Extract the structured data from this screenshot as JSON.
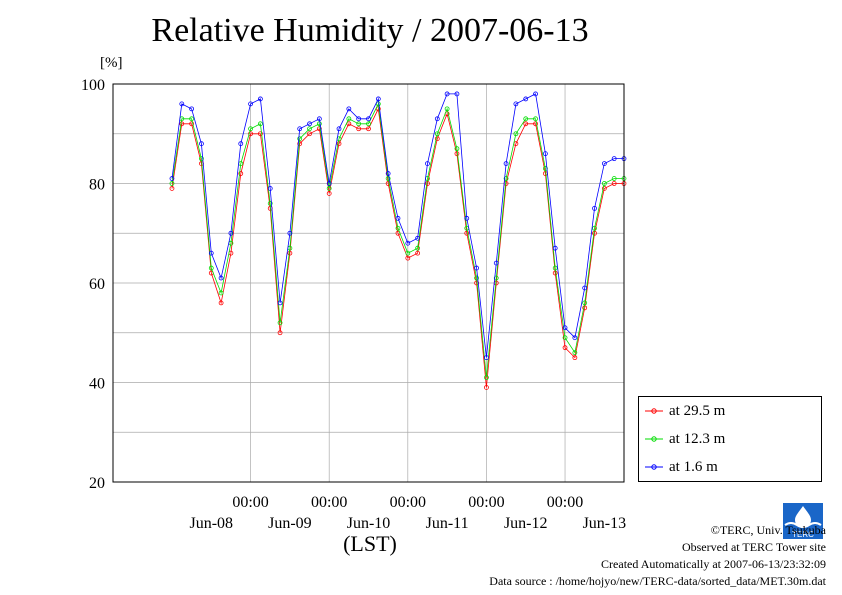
{
  "title": "Relative Humidity / 2007-06-13",
  "unit_label": "[%]",
  "x_axis_label": "(LST)",
  "legend": [
    {
      "label": "at 29.5 m",
      "color": "#ff0000"
    },
    {
      "label": "at 12.3 m",
      "color": "#00dd00"
    },
    {
      "label": "at 1.6 m",
      "color": "#0000ff"
    }
  ],
  "footer": {
    "copyright": "©TERC, Univ. Tsukuba",
    "observed": "Observed at TERC Tower site",
    "created": "Created Automatically at 2007-06-13/23:32:09",
    "source": "Data source : /home/hojyo/new/TERC-data/sorted_data/MET.30m.dat"
  },
  "logo_text": "TERC",
  "chart_data": {
    "type": "line",
    "title": "Relative Humidity / 2007-06-13",
    "ylabel": "[%]",
    "xlabel": "(LST)",
    "ylim": [
      20,
      100
    ],
    "xlim_hours": [
      -18,
      138
    ],
    "y_ticks": [
      20,
      40,
      60,
      80,
      100
    ],
    "x_tick_labels": [
      "00:00",
      "00:00",
      "00:00",
      "00:00",
      "00:00"
    ],
    "x_tick_hours": [
      24,
      48,
      72,
      96,
      120
    ],
    "date_labels": [
      "Jun-08",
      "Jun-09",
      "Jun-10",
      "Jun-11",
      "Jun-12",
      "Jun-13"
    ],
    "date_label_hours": [
      12,
      36,
      60,
      84,
      108,
      132
    ],
    "grid": true,
    "legend_position": "bottom-right",
    "x": [
      0,
      3,
      6,
      9,
      12,
      15,
      18,
      21,
      24,
      27,
      30,
      33,
      36,
      39,
      42,
      45,
      48,
      51,
      54,
      57,
      60,
      63,
      66,
      69,
      72,
      75,
      78,
      81,
      84,
      87,
      90,
      93,
      96,
      99,
      102,
      105,
      108,
      111,
      114,
      117,
      120,
      123,
      126,
      129,
      132,
      135,
      138
    ],
    "series": [
      {
        "name": "at 29.5 m",
        "color": "#ff0000",
        "values": [
          79,
          92,
          92,
          84,
          62,
          56,
          66,
          82,
          90,
          90,
          75,
          50,
          66,
          88,
          90,
          91,
          78,
          88,
          92,
          91,
          91,
          95,
          80,
          70,
          65,
          66,
          80,
          89,
          94,
          86,
          70,
          60,
          39,
          60,
          80,
          88,
          92,
          92,
          82,
          62,
          47,
          45,
          55,
          70,
          79,
          80,
          80
        ]
      },
      {
        "name": "at 12.3 m",
        "color": "#00dd00",
        "values": [
          80,
          93,
          93,
          85,
          63,
          58,
          68,
          84,
          91,
          92,
          76,
          52,
          67,
          89,
          91,
          92,
          79,
          89,
          93,
          92,
          92,
          96,
          81,
          71,
          66,
          67,
          81,
          90,
          95,
          87,
          71,
          61,
          41,
          61,
          81,
          90,
          93,
          93,
          83,
          63,
          49,
          46,
          56,
          71,
          80,
          81,
          81
        ]
      },
      {
        "name": "at 1.6 m",
        "color": "#0000ff",
        "values": [
          81,
          96,
          95,
          88,
          66,
          61,
          70,
          88,
          96,
          97,
          79,
          56,
          70,
          91,
          92,
          93,
          80,
          91,
          95,
          93,
          93,
          97,
          82,
          73,
          68,
          69,
          84,
          93,
          98,
          98,
          73,
          63,
          45,
          64,
          84,
          96,
          97,
          98,
          86,
          67,
          51,
          49,
          59,
          75,
          84,
          85,
          85
        ]
      }
    ]
  }
}
